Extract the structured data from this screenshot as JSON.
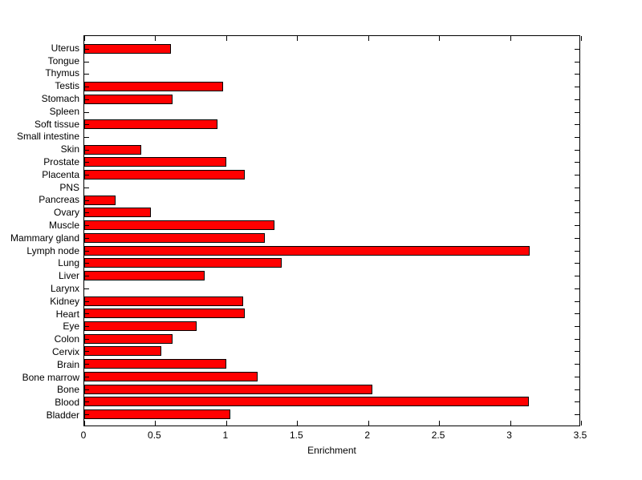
{
  "figure": {
    "background_color": "#ffffff",
    "axis_color": "#000000"
  },
  "chart_data": {
    "type": "bar",
    "orientation": "horizontal",
    "title": "",
    "xlabel": "Enrichment",
    "ylabel": "",
    "categories": [
      "Uterus",
      "Tongue",
      "Thymus",
      "Testis",
      "Stomach",
      "Spleen",
      "Soft tissue",
      "Small intestine",
      "Skin",
      "Prostate",
      "Placenta",
      "PNS",
      "Pancreas",
      "Ovary",
      "Muscle",
      "Mammary gland",
      "Lymph node",
      "Lung",
      "Liver",
      "Larynx",
      "Kidney",
      "Heart",
      "Eye",
      "Colon",
      "Cervix",
      "Brain",
      "Bone marrow",
      "Bone",
      "Blood",
      "Bladder"
    ],
    "values": [
      0.61,
      0,
      0,
      0.98,
      0.62,
      0,
      0.94,
      0,
      0.4,
      1.0,
      1.13,
      0,
      0.22,
      0.47,
      1.34,
      1.27,
      3.14,
      1.39,
      0.85,
      0,
      1.12,
      1.13,
      0.79,
      0.62,
      0.54,
      1.0,
      1.22,
      2.03,
      3.13,
      1.03
    ],
    "xlim": [
      0,
      3.5
    ],
    "xticks": [
      0,
      0.5,
      1,
      1.5,
      2,
      2.5,
      3,
      3.5
    ],
    "xtick_labels": [
      "0",
      "0.5",
      "1",
      "1.5",
      "2",
      "2.5",
      "3",
      "3.5"
    ],
    "grid": false,
    "legend": "none",
    "bar_color": "#ff0000",
    "bar_edge_color": "#000000"
  }
}
